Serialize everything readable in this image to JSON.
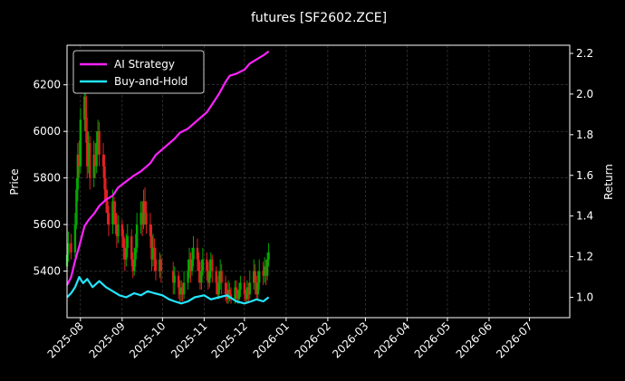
{
  "chart_data": {
    "type": "line",
    "title": "futures [SF2602.ZCE]",
    "ylabel_left": "Price",
    "ylabel_right": "Return",
    "x_ticks": [
      "2025-08",
      "2025-09",
      "2025-10",
      "2025-11",
      "2025-12",
      "2026-01",
      "2026-02",
      "2026-03",
      "2026-04",
      "2026-05",
      "2026-06",
      "2026-07"
    ],
    "x_range": [
      "2025-07-22",
      "2026-07-31"
    ],
    "ylim_left": [
      5200,
      6370
    ],
    "ylim_right": [
      0.9,
      2.24
    ],
    "y_ticks_left": [
      5400,
      5600,
      5800,
      6000,
      6200
    ],
    "y_ticks_right": [
      1.0,
      1.2,
      1.4,
      1.6,
      1.8,
      2.0,
      2.2
    ],
    "grid": true,
    "legend_position": "top-left",
    "colors": {
      "up": "#00a800",
      "down": "#e02020",
      "ai": "#ff22ff",
      "bh": "#22e6ff",
      "grid": "#444444"
    },
    "series": [
      {
        "name": "AI Strategy",
        "axis": "right",
        "x": [
          "2025-07-22",
          "2025-07-25",
          "2025-07-28",
          "2025-07-31",
          "2025-08-04",
          "2025-08-07",
          "2025-08-11",
          "2025-08-15",
          "2025-08-20",
          "2025-08-25",
          "2025-08-29",
          "2025-09-04",
          "2025-09-10",
          "2025-09-15",
          "2025-09-22",
          "2025-09-26",
          "2025-10-03",
          "2025-10-10",
          "2025-10-14",
          "2025-10-20",
          "2025-10-27",
          "2025-11-03",
          "2025-11-07",
          "2025-11-12",
          "2025-11-17",
          "2025-11-20",
          "2025-11-25",
          "2025-12-01",
          "2025-12-05",
          "2025-12-10",
          "2025-12-15",
          "2025-12-19"
        ],
        "values": [
          1.06,
          1.1,
          1.18,
          1.25,
          1.35,
          1.38,
          1.41,
          1.45,
          1.48,
          1.5,
          1.54,
          1.57,
          1.6,
          1.62,
          1.66,
          1.7,
          1.74,
          1.78,
          1.81,
          1.83,
          1.87,
          1.91,
          1.95,
          2.0,
          2.06,
          2.09,
          2.1,
          2.12,
          2.15,
          2.17,
          2.19,
          2.21
        ]
      },
      {
        "name": "Buy-and-Hold",
        "axis": "right",
        "x": [
          "2025-07-22",
          "2025-07-25",
          "2025-07-28",
          "2025-07-31",
          "2025-08-03",
          "2025-08-06",
          "2025-08-10",
          "2025-08-15",
          "2025-08-20",
          "2025-08-25",
          "2025-08-30",
          "2025-09-04",
          "2025-09-10",
          "2025-09-15",
          "2025-09-20",
          "2025-09-25",
          "2025-10-01",
          "2025-10-06",
          "2025-10-10",
          "2025-10-15",
          "2025-10-20",
          "2025-10-25",
          "2025-11-01",
          "2025-11-06",
          "2025-11-12",
          "2025-11-18",
          "2025-11-25",
          "2025-12-01",
          "2025-12-06",
          "2025-12-10",
          "2025-12-15",
          "2025-12-19"
        ],
        "values": [
          1.0,
          1.02,
          1.05,
          1.1,
          1.07,
          1.09,
          1.05,
          1.08,
          1.05,
          1.03,
          1.01,
          1.0,
          1.02,
          1.01,
          1.03,
          1.02,
          1.01,
          0.99,
          0.98,
          0.97,
          0.98,
          1.0,
          1.01,
          0.99,
          1.0,
          1.01,
          0.98,
          0.97,
          0.98,
          0.99,
          0.98,
          1.0
        ]
      }
    ],
    "candles": [
      [
        "2025-07-22",
        5420,
        5470,
        5380,
        5500
      ],
      [
        "2025-07-23",
        5470,
        5520,
        5440,
        5570
      ],
      [
        "2025-07-25",
        5520,
        5480,
        5450,
        5560
      ],
      [
        "2025-07-28",
        5480,
        5600,
        5460,
        5650
      ],
      [
        "2025-07-29",
        5600,
        5750,
        5580,
        5800
      ],
      [
        "2025-07-30",
        5750,
        5900,
        5700,
        5950
      ],
      [
        "2025-07-31",
        5900,
        5850,
        5800,
        5960
      ],
      [
        "2025-08-01",
        5850,
        6050,
        5820,
        6100
      ],
      [
        "2025-08-04",
        6050,
        6150,
        6000,
        6200
      ],
      [
        "2025-08-05",
        6150,
        6000,
        5950,
        6180
      ],
      [
        "2025-08-06",
        6000,
        5850,
        5800,
        6060
      ],
      [
        "2025-08-07",
        5850,
        5950,
        5820,
        6000
      ],
      [
        "2025-08-08",
        5950,
        5800,
        5750,
        5980
      ],
      [
        "2025-08-11",
        5800,
        5900,
        5760,
        5960
      ],
      [
        "2025-08-12",
        5900,
        5850,
        5800,
        5950
      ],
      [
        "2025-08-13",
        5850,
        5950,
        5820,
        6000
      ],
      [
        "2025-08-14",
        5950,
        6000,
        5900,
        6050
      ],
      [
        "2025-08-15",
        6000,
        5900,
        5850,
        6040
      ],
      [
        "2025-08-18",
        5900,
        5850,
        5800,
        5950
      ],
      [
        "2025-08-19",
        5850,
        5750,
        5700,
        5900
      ],
      [
        "2025-08-20",
        5750,
        5700,
        5650,
        5800
      ],
      [
        "2025-08-21",
        5700,
        5650,
        5600,
        5750
      ],
      [
        "2025-08-22",
        5650,
        5600,
        5550,
        5680
      ],
      [
        "2025-08-25",
        5600,
        5700,
        5560,
        5750
      ],
      [
        "2025-08-26",
        5700,
        5650,
        5600,
        5720
      ],
      [
        "2025-08-27",
        5650,
        5600,
        5560,
        5700
      ],
      [
        "2025-08-28",
        5600,
        5550,
        5500,
        5650
      ],
      [
        "2025-08-29",
        5550,
        5600,
        5520,
        5640
      ],
      [
        "2025-09-01",
        5600,
        5550,
        5500,
        5620
      ],
      [
        "2025-09-02",
        5550,
        5500,
        5450,
        5580
      ],
      [
        "2025-09-03",
        5500,
        5450,
        5400,
        5540
      ],
      [
        "2025-09-04",
        5450,
        5500,
        5420,
        5560
      ],
      [
        "2025-09-05",
        5500,
        5550,
        5460,
        5600
      ],
      [
        "2025-09-08",
        5550,
        5450,
        5420,
        5580
      ],
      [
        "2025-09-09",
        5450,
        5400,
        5370,
        5480
      ],
      [
        "2025-09-10",
        5400,
        5450,
        5380,
        5500
      ],
      [
        "2025-09-11",
        5450,
        5500,
        5420,
        5560
      ],
      [
        "2025-09-12",
        5500,
        5600,
        5480,
        5650
      ],
      [
        "2025-09-15",
        5600,
        5650,
        5560,
        5700
      ],
      [
        "2025-09-16",
        5650,
        5600,
        5550,
        5700
      ],
      [
        "2025-09-17",
        5600,
        5700,
        5580,
        5750
      ],
      [
        "2025-09-18",
        5700,
        5650,
        5600,
        5760
      ],
      [
        "2025-09-19",
        5650,
        5600,
        5560,
        5700
      ],
      [
        "2025-09-22",
        5600,
        5550,
        5500,
        5650
      ],
      [
        "2025-09-23",
        5550,
        5450,
        5400,
        5600
      ],
      [
        "2025-09-24",
        5450,
        5500,
        5420,
        5560
      ],
      [
        "2025-09-25",
        5500,
        5450,
        5400,
        5540
      ],
      [
        "2025-09-26",
        5450,
        5400,
        5360,
        5500
      ],
      [
        "2025-09-29",
        5400,
        5450,
        5370,
        5480
      ],
      [
        "2025-09-30",
        5450,
        5400,
        5350,
        5470
      ],
      [
        "2025-10-09",
        5400,
        5350,
        5300,
        5440
      ],
      [
        "2025-10-10",
        5350,
        5380,
        5300,
        5420
      ],
      [
        "2025-10-13",
        5380,
        5330,
        5280,
        5400
      ],
      [
        "2025-10-14",
        5330,
        5300,
        5260,
        5360
      ],
      [
        "2025-10-15",
        5300,
        5330,
        5270,
        5360
      ],
      [
        "2025-10-16",
        5330,
        5300,
        5270,
        5350
      ],
      [
        "2025-10-17",
        5300,
        5350,
        5280,
        5400
      ],
      [
        "2025-10-20",
        5350,
        5400,
        5320,
        5450
      ],
      [
        "2025-10-21",
        5400,
        5450,
        5370,
        5500
      ],
      [
        "2025-10-22",
        5450,
        5400,
        5350,
        5480
      ],
      [
        "2025-10-23",
        5400,
        5450,
        5380,
        5500
      ],
      [
        "2025-10-24",
        5450,
        5500,
        5420,
        5550
      ],
      [
        "2025-10-27",
        5500,
        5450,
        5400,
        5540
      ],
      [
        "2025-10-28",
        5450,
        5400,
        5350,
        5480
      ],
      [
        "2025-10-29",
        5400,
        5350,
        5320,
        5440
      ],
      [
        "2025-10-30",
        5350,
        5400,
        5320,
        5450
      ],
      [
        "2025-10-31",
        5400,
        5450,
        5380,
        5500
      ],
      [
        "2025-11-03",
        5450,
        5400,
        5360,
        5480
      ],
      [
        "2025-11-04",
        5400,
        5350,
        5320,
        5440
      ],
      [
        "2025-11-05",
        5350,
        5400,
        5330,
        5450
      ],
      [
        "2025-11-06",
        5400,
        5450,
        5370,
        5480
      ],
      [
        "2025-11-07",
        5450,
        5400,
        5350,
        5470
      ],
      [
        "2025-11-10",
        5400,
        5350,
        5300,
        5420
      ],
      [
        "2025-11-11",
        5350,
        5300,
        5280,
        5380
      ],
      [
        "2025-11-12",
        5300,
        5350,
        5280,
        5400
      ],
      [
        "2025-11-13",
        5350,
        5400,
        5320,
        5450
      ],
      [
        "2025-11-14",
        5400,
        5350,
        5300,
        5430
      ],
      [
        "2025-11-17",
        5350,
        5300,
        5270,
        5380
      ],
      [
        "2025-11-18",
        5300,
        5280,
        5260,
        5350
      ],
      [
        "2025-11-19",
        5280,
        5320,
        5260,
        5360
      ],
      [
        "2025-11-20",
        5320,
        5300,
        5270,
        5350
      ],
      [
        "2025-11-21",
        5300,
        5280,
        5260,
        5330
      ],
      [
        "2025-11-24",
        5280,
        5330,
        5260,
        5360
      ],
      [
        "2025-11-25",
        5330,
        5300,
        5270,
        5360
      ],
      [
        "2025-11-26",
        5300,
        5280,
        5260,
        5320
      ],
      [
        "2025-11-27",
        5280,
        5320,
        5260,
        5350
      ],
      [
        "2025-11-28",
        5320,
        5350,
        5290,
        5380
      ],
      [
        "2025-12-01",
        5350,
        5300,
        5270,
        5380
      ],
      [
        "2025-12-02",
        5300,
        5280,
        5260,
        5320
      ],
      [
        "2025-12-03",
        5280,
        5330,
        5260,
        5360
      ],
      [
        "2025-12-04",
        5330,
        5300,
        5270,
        5350
      ],
      [
        "2025-12-05",
        5300,
        5350,
        5280,
        5400
      ],
      [
        "2025-12-08",
        5350,
        5400,
        5320,
        5450
      ],
      [
        "2025-12-09",
        5400,
        5350,
        5300,
        5430
      ],
      [
        "2025-12-10",
        5350,
        5300,
        5280,
        5380
      ],
      [
        "2025-12-11",
        5300,
        5350,
        5280,
        5400
      ],
      [
        "2025-12-12",
        5350,
        5400,
        5320,
        5450
      ],
      [
        "2025-12-15",
        5400,
        5380,
        5340,
        5440
      ],
      [
        "2025-12-16",
        5380,
        5420,
        5350,
        5460
      ],
      [
        "2025-12-17",
        5420,
        5380,
        5340,
        5450
      ],
      [
        "2025-12-18",
        5380,
        5450,
        5360,
        5480
      ],
      [
        "2025-12-19",
        5450,
        5480,
        5420,
        5520
      ]
    ]
  }
}
